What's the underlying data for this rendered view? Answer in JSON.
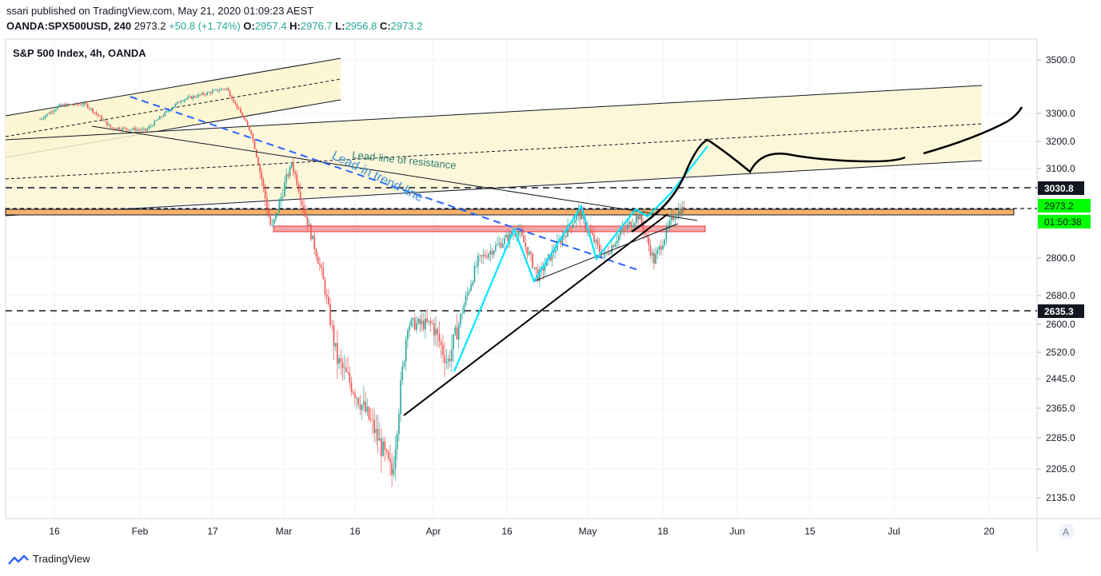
{
  "header": {
    "publisher_line": "ssari published on TradingView.com, May 21, 2020 01:09:23 AEST",
    "symbol": "OANDA:SPX500USD, 240",
    "last": "2973.2",
    "change": "+50.8 (+1.74%)",
    "open_label": "O:",
    "open": "2957.4",
    "high_label": "H:",
    "high": "2976.7",
    "low_label": "L:",
    "low": "2956.8",
    "close_label": "C:",
    "close": "2973.2"
  },
  "legend": {
    "title": "S&P 500 Index, 4h, OANDA"
  },
  "footer": {
    "brand": "TradingView"
  },
  "auto_scale_label": "A",
  "annotation_text": "Lead-line of resistance",
  "annotation_text2": "Lead-in trend-line",
  "colors": {
    "up": "#26a69a",
    "down": "#ef5350",
    "channel_fill": "#fdf6d3",
    "support_fill": "#f6b26b",
    "resistance_fill": "#f4a6a6",
    "cyan": "#00e5ff",
    "blue_dash": "#2962ff",
    "price_badge": "#00ff00"
  },
  "chart_data": {
    "type": "candlestick",
    "title": "S&P 500 Index, 4h, OANDA",
    "y_axis": {
      "ticks": [
        3500.0,
        3300.0,
        3200.0,
        3100.0,
        2800.0,
        2680.0,
        2600.0,
        2520.0,
        2445.0,
        2365.0,
        2285.0,
        2205.0,
        2135.0
      ],
      "range": [
        2090,
        3600
      ]
    },
    "x_axis": {
      "ticks": [
        "16",
        "Feb",
        "17",
        "Mar",
        "16",
        "Apr",
        "16",
        "May",
        "18",
        "Jun",
        "15",
        "Jul",
        "20"
      ]
    },
    "price_labels": [
      {
        "value": "3030.8",
        "style": "dark"
      },
      {
        "value": "2973.2",
        "style": "green"
      },
      {
        "value": "01:50:38",
        "style": "green"
      },
      {
        "value": "2635.3",
        "style": "dark"
      }
    ],
    "key_levels": {
      "resistance_dashed": 3030.8,
      "support_dashed": 2635.3,
      "last_price": 2973.2
    },
    "price_path": [
      [
        "2020-01-13",
        3280
      ],
      [
        "2020-01-17",
        3330
      ],
      [
        "2020-01-22",
        3335
      ],
      [
        "2020-01-27",
        3250
      ],
      [
        "2020-02-03",
        3240
      ],
      [
        "2020-02-10",
        3350
      ],
      [
        "2020-02-19",
        3395
      ],
      [
        "2020-02-24",
        3230
      ],
      [
        "2020-02-28",
        2900
      ],
      [
        "2020-03-03",
        3120
      ],
      [
        "2020-03-09",
        2750
      ],
      [
        "2020-03-12",
        2500
      ],
      [
        "2020-03-16",
        2400
      ],
      [
        "2020-03-19",
        2320
      ],
      [
        "2020-03-23",
        2190
      ],
      [
        "2020-03-26",
        2600
      ],
      [
        "2020-03-31",
        2600
      ],
      [
        "2020-04-03",
        2490
      ],
      [
        "2020-04-09",
        2790
      ],
      [
        "2020-04-17",
        2900
      ],
      [
        "2020-04-21",
        2740
      ],
      [
        "2020-04-29",
        2960
      ],
      [
        "2020-05-04",
        2800
      ],
      [
        "2020-05-07",
        2880
      ],
      [
        "2020-05-11",
        2950
      ],
      [
        "2020-05-14",
        2790
      ],
      [
        "2020-05-18",
        2950
      ],
      [
        "2020-05-20",
        2973.2
      ]
    ]
  }
}
